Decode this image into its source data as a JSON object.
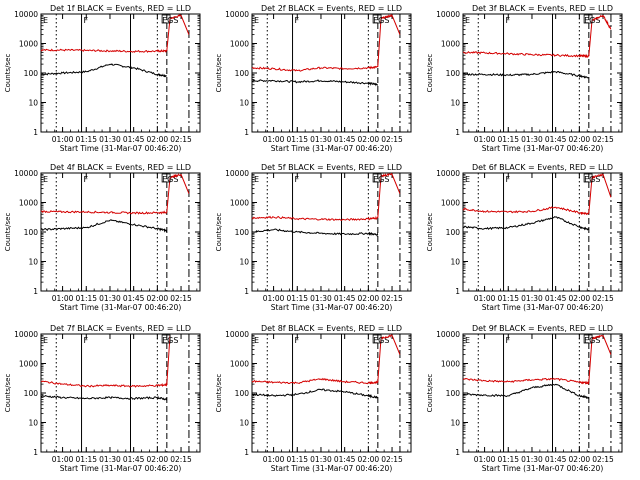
{
  "figure": {
    "xlabel": "Start Time (31-Mar-07 00:46:20)",
    "ylabel": "Counts/sec",
    "xticks": [
      "01:00",
      "01:15",
      "01:30",
      "01:45",
      "02:00",
      "02:15"
    ],
    "yticks": [
      "1",
      "10",
      "100",
      "1000",
      "10000"
    ],
    "colors": {
      "events": "#000000",
      "lld": "#d40000"
    }
  },
  "chart_data": [
    {
      "type": "line",
      "title": "Det 1f BLACK = Events, RED = LLD",
      "label_left": "E",
      "label_mid": "F",
      "label_right": "EGS",
      "x": [
        "00:46:20",
        "01:00",
        "01:15",
        "01:30",
        "01:45",
        "02:00",
        "02:06",
        "02:08",
        "02:15",
        "02:20"
      ],
      "series": [
        {
          "name": "Events",
          "values": [
            90,
            100,
            110,
            200,
            150,
            90,
            80,
            null,
            null,
            null
          ]
        },
        {
          "name": "LLD",
          "values": [
            600,
            600,
            580,
            560,
            540,
            550,
            560,
            7000,
            9000,
            2000
          ]
        }
      ],
      "ylim": [
        1,
        10000
      ],
      "yscale": "log"
    },
    {
      "type": "line",
      "title": "Det 2f BLACK = Events, RED = LLD",
      "label_left": "E",
      "label_mid": "F",
      "label_right": "EGS",
      "x": [
        "00:46:20",
        "01:00",
        "01:15",
        "01:30",
        "01:45",
        "02:00",
        "02:06",
        "02:08",
        "02:15",
        "02:20"
      ],
      "series": [
        {
          "name": "Events",
          "values": [
            55,
            55,
            50,
            55,
            50,
            45,
            40,
            null,
            null,
            null
          ]
        },
        {
          "name": "LLD",
          "values": [
            150,
            140,
            120,
            150,
            140,
            150,
            160,
            7000,
            9000,
            2000
          ]
        }
      ],
      "ylim": [
        1,
        10000
      ],
      "yscale": "log"
    },
    {
      "type": "line",
      "title": "Det 3f BLACK = Events, RED = LLD",
      "label_left": "E",
      "label_mid": "F",
      "label_right": "EGS",
      "x": [
        "00:46:20",
        "01:00",
        "01:15",
        "01:30",
        "01:45",
        "02:00",
        "02:06",
        "02:08",
        "02:15",
        "02:20"
      ],
      "series": [
        {
          "name": "Events",
          "values": [
            90,
            90,
            85,
            90,
            110,
            80,
            70,
            null,
            null,
            null
          ]
        },
        {
          "name": "LLD",
          "values": [
            500,
            480,
            450,
            420,
            400,
            380,
            370,
            6000,
            9000,
            3000
          ]
        }
      ],
      "ylim": [
        1,
        10000
      ],
      "yscale": "log"
    },
    {
      "type": "line",
      "title": "Det 4f BLACK = Events, RED = LLD",
      "label_left": "E",
      "label_mid": "F",
      "label_right": "EGS",
      "x": [
        "00:46:20",
        "01:00",
        "01:15",
        "01:30",
        "01:45",
        "02:00",
        "02:06",
        "02:08",
        "02:15",
        "02:20"
      ],
      "series": [
        {
          "name": "Events",
          "values": [
            120,
            130,
            140,
            250,
            180,
            130,
            110,
            null,
            null,
            null
          ]
        },
        {
          "name": "LLD",
          "values": [
            500,
            480,
            480,
            460,
            440,
            450,
            460,
            7000,
            9000,
            2000
          ]
        }
      ],
      "ylim": [
        1,
        10000
      ],
      "yscale": "log"
    },
    {
      "type": "line",
      "title": "Det 5f BLACK = Events, RED = LLD",
      "label_left": "E",
      "label_mid": "F",
      "label_right": "EGS",
      "x": [
        "00:46:20",
        "01:00",
        "01:15",
        "01:30",
        "01:45",
        "02:00",
        "02:06",
        "02:08",
        "02:15",
        "02:20"
      ],
      "series": [
        {
          "name": "Events",
          "values": [
            100,
            120,
            100,
            90,
            85,
            90,
            80,
            null,
            null,
            null
          ]
        },
        {
          "name": "LLD",
          "values": [
            300,
            320,
            280,
            270,
            260,
            280,
            300,
            8000,
            9000,
            2000
          ]
        }
      ],
      "ylim": [
        1,
        10000
      ],
      "yscale": "log"
    },
    {
      "type": "line",
      "title": "Det 6f BLACK = Events, RED = LLD",
      "label_left": "E",
      "label_mid": "F",
      "label_right": "EGS",
      "x": [
        "00:46:20",
        "01:00",
        "01:15",
        "01:30",
        "01:45",
        "02:00",
        "02:06",
        "02:08",
        "02:15",
        "02:20"
      ],
      "series": [
        {
          "name": "Events",
          "values": [
            150,
            130,
            140,
            200,
            320,
            150,
            120,
            null,
            null,
            null
          ]
        },
        {
          "name": "LLD",
          "values": [
            600,
            500,
            480,
            500,
            700,
            450,
            420,
            7000,
            9000,
            1500
          ]
        }
      ],
      "ylim": [
        1,
        10000
      ],
      "yscale": "log"
    },
    {
      "type": "line",
      "title": "Det 7f BLACK = Events, RED = LLD",
      "label_left": "E",
      "label_mid": "F",
      "label_right": "EGS",
      "x": [
        "00:46:20",
        "01:00",
        "01:15",
        "01:30",
        "01:45",
        "02:00",
        "02:06",
        "02:08",
        "02:15",
        "02:20"
      ],
      "series": [
        {
          "name": "Events",
          "values": [
            80,
            70,
            65,
            70,
            65,
            70,
            60,
            null,
            null,
            null
          ]
        },
        {
          "name": "LLD",
          "values": [
            250,
            200,
            170,
            180,
            170,
            180,
            190,
            9000,
            null,
            null
          ]
        }
      ],
      "ylim": [
        1,
        10000
      ],
      "yscale": "log"
    },
    {
      "type": "line",
      "title": "Det 8f BLACK = Events, RED = LLD",
      "label_left": "E",
      "label_mid": "F",
      "label_right": "EGS",
      "x": [
        "00:46:20",
        "01:00",
        "01:15",
        "01:30",
        "01:45",
        "02:00",
        "02:06",
        "02:08",
        "02:15",
        "02:20"
      ],
      "series": [
        {
          "name": "Events",
          "values": [
            90,
            80,
            90,
            130,
            110,
            80,
            70,
            null,
            null,
            null
          ]
        },
        {
          "name": "LLD",
          "values": [
            250,
            230,
            220,
            300,
            240,
            220,
            230,
            7000,
            9000,
            2000
          ]
        }
      ],
      "ylim": [
        1,
        10000
      ],
      "yscale": "log"
    },
    {
      "type": "line",
      "title": "Det 9f BLACK = Events, RED = LLD",
      "label_left": "E",
      "label_mid": "F",
      "label_right": "EGS",
      "x": [
        "00:46:20",
        "01:00",
        "01:15",
        "01:30",
        "01:45",
        "02:00",
        "02:06",
        "02:08",
        "02:15",
        "02:20"
      ],
      "series": [
        {
          "name": "Events",
          "values": [
            90,
            85,
            80,
            150,
            200,
            80,
            70,
            null,
            null,
            null
          ]
        },
        {
          "name": "LLD",
          "values": [
            300,
            260,
            240,
            280,
            300,
            230,
            220,
            7000,
            9000,
            2000
          ]
        }
      ],
      "ylim": [
        1,
        10000
      ],
      "yscale": "log"
    }
  ]
}
